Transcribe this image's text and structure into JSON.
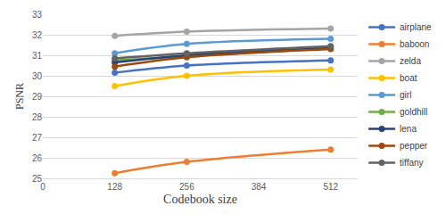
{
  "chart_data": {
    "type": "line",
    "x_label": "Codebook size",
    "y_label": "PSNR",
    "x": [
      128,
      256,
      512
    ],
    "series": [
      {
        "name": "airplane",
        "color": "#4472c4",
        "values": [
          30.15,
          30.5,
          30.75
        ]
      },
      {
        "name": "baboon",
        "color": "#ed7d31",
        "values": [
          25.25,
          25.8,
          26.4
        ]
      },
      {
        "name": "zelda",
        "color": "#a5a5a5",
        "values": [
          31.95,
          32.15,
          32.3
        ]
      },
      {
        "name": "boat",
        "color": "#ffc000",
        "values": [
          29.5,
          30.0,
          30.3
        ]
      },
      {
        "name": "girl",
        "color": "#5b9bd5",
        "values": [
          31.1,
          31.55,
          31.8
        ]
      },
      {
        "name": "goldhill",
        "color": "#70ad47",
        "values": [
          30.75,
          30.95,
          31.35
        ]
      },
      {
        "name": "lena",
        "color": "#264478",
        "values": [
          30.65,
          31.0,
          31.4
        ]
      },
      {
        "name": "pepper",
        "color": "#9e480e",
        "values": [
          30.45,
          30.9,
          31.3
        ]
      },
      {
        "name": "tiffany",
        "color": "#636363",
        "values": [
          30.85,
          31.1,
          31.45
        ]
      }
    ],
    "xlim": [
      0,
      560
    ],
    "xticks": [
      0,
      128,
      256,
      384,
      512
    ],
    "ylim": [
      25,
      33
    ],
    "yticks": [
      25,
      26,
      27,
      28,
      29,
      30,
      31,
      32,
      33
    ],
    "grid": true,
    "legend": "right",
    "marker": "circle"
  }
}
